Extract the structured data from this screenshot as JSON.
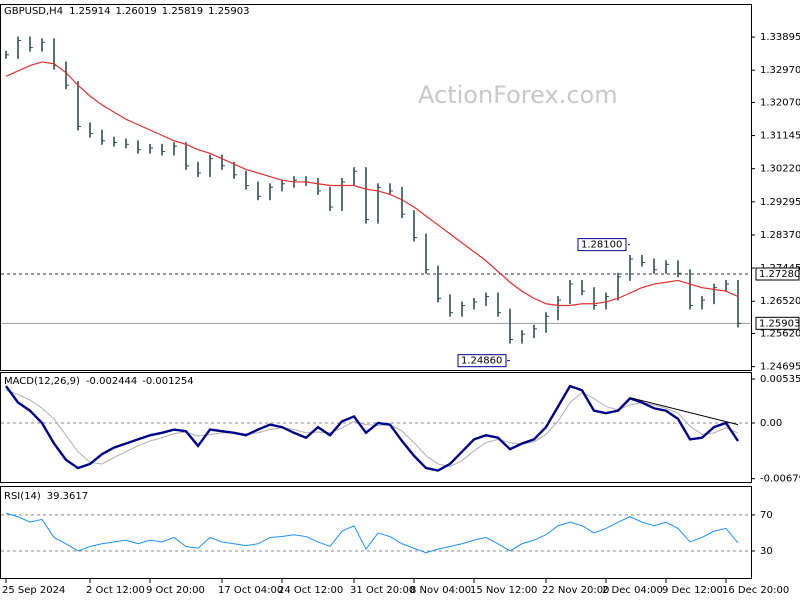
{
  "chart_data": [
    {
      "type": "price",
      "title": "GBPUSD,H4",
      "quote": [
        1.25914,
        1.26019,
        1.25819,
        1.25903
      ],
      "watermark": "ActionForex.com",
      "color": "#2f4f4f",
      "values": [
        1.334,
        1.338,
        1.336,
        1.3375,
        1.331,
        1.3255,
        1.314,
        1.312,
        1.31,
        1.3095,
        1.309,
        1.3075,
        1.308,
        1.307,
        1.3085,
        1.303,
        1.301,
        1.305,
        1.303,
        1.3005,
        1.2975,
        1.2945,
        1.297,
        1.298,
        1.299,
        1.2985,
        1.296,
        1.2915,
        1.2985,
        1.3015,
        1.288,
        1.297,
        1.296,
        1.2895,
        1.283,
        1.274,
        1.266,
        1.262,
        1.264,
        1.265,
        1.2665,
        1.262,
        1.2545,
        1.256,
        1.2575,
        1.261,
        1.2655,
        1.27,
        1.268,
        1.264,
        1.2665,
        1.272,
        1.277,
        1.276,
        1.274,
        1.2755,
        1.273,
        1.264,
        1.2655,
        1.269,
        1.27,
        1.259
      ],
      "ma": {
        "color": "#e03030",
        "values": [
          1.328,
          1.3295,
          1.331,
          1.332,
          1.3315,
          1.329,
          1.3255,
          1.3225,
          1.32,
          1.318,
          1.316,
          1.3145,
          1.313,
          1.3115,
          1.31,
          1.309,
          1.3075,
          1.3065,
          1.305,
          1.3035,
          1.302,
          1.301,
          1.3,
          1.299,
          1.2985,
          1.2985,
          1.298,
          1.2975,
          1.2975,
          1.2975,
          1.2965,
          1.296,
          1.295,
          1.2935,
          1.2915,
          1.289,
          1.2865,
          1.284,
          1.2815,
          1.279,
          1.2765,
          1.2735,
          1.2705,
          1.268,
          1.266,
          1.2645,
          1.264,
          1.264,
          1.2645,
          1.2645,
          1.265,
          1.266,
          1.2675,
          1.269,
          1.27,
          1.2705,
          1.271,
          1.27,
          1.269,
          1.2685,
          1.268,
          1.2665
        ]
      },
      "ylim": [
        1.246,
        1.3479
      ],
      "yticks": [
        1.33895,
        {
          "value": 1.3297,
          "label": "1.32970"
        },
        {
          "value": 1.3207,
          "label": "1.32070"
        },
        1.31145,
        {
          "value": 1.3022,
          "label": "1.30220"
        },
        1.29295,
        {
          "value": 1.2837,
          "label": "1.28370"
        },
        1.27445,
        {
          "value": 1.2652,
          "label": "1.26520"
        },
        {
          "value": 1.2562,
          "label": "1.25620"
        },
        1.24695
      ],
      "levels": [
        {
          "value": 1.2728,
          "label": "1.27280"
        },
        1.25903
      ],
      "annotations": [
        {
          "value": 1.281,
          "label": "1.28100"
        },
        {
          "value": 1.2486,
          "label": "1.24860"
        }
      ]
    },
    {
      "type": "macd",
      "title": "MACD(12,26,9)",
      "readout": [
        -0.002444,
        -0.001254
      ],
      "series": [
        {
          "color": "#00008b",
          "values": [
            0.0045,
            0.0025,
            0.0015,
            0.0,
            -0.0025,
            -0.0045,
            -0.0055,
            -0.005,
            -0.0038,
            -0.003,
            -0.0025,
            -0.002,
            -0.0015,
            -0.0012,
            -0.0008,
            -0.001,
            -0.0028,
            -0.0008,
            -0.001,
            -0.0012,
            -0.0015,
            -0.0008,
            -0.0002,
            -0.0005,
            -0.0012,
            -0.0018,
            -0.0005,
            -0.0015,
            0.0002,
            0.0008,
            -0.0012,
            0.0,
            -0.0002,
            -0.0022,
            -0.004,
            -0.0055,
            -0.0058,
            -0.005,
            -0.0035,
            -0.002,
            -0.0015,
            -0.0018,
            -0.0032,
            -0.0025,
            -0.002,
            -0.0005,
            0.002,
            0.0045,
            0.004,
            0.0015,
            0.0012,
            0.0015,
            0.003,
            0.0025,
            0.0018,
            0.0015,
            0.0005,
            -0.002,
            -0.0018,
            -0.0005,
            0.0,
            -0.0022
          ]
        },
        {
          "color": "#b0b0b0",
          "values": [
            0.004,
            0.0035,
            0.0028,
            0.0018,
            0.0005,
            -0.0015,
            -0.0035,
            -0.0048,
            -0.005,
            -0.0042,
            -0.0035,
            -0.0028,
            -0.0022,
            -0.0018,
            -0.0013,
            -0.0011,
            -0.0016,
            -0.0014,
            -0.0012,
            -0.0012,
            -0.0013,
            -0.0012,
            -0.0008,
            -0.0006,
            -0.0008,
            -0.0012,
            -0.0011,
            -0.0012,
            -0.0006,
            0.0002,
            -0.0002,
            -0.0003,
            -0.0002,
            -0.001,
            -0.0024,
            -0.004,
            -0.005,
            -0.0053,
            -0.0046,
            -0.0034,
            -0.0024,
            -0.002,
            -0.0024,
            -0.0026,
            -0.0023,
            -0.0014,
            0.0002,
            0.0025,
            0.0037,
            0.003,
            0.002,
            0.0016,
            0.0022,
            0.0025,
            0.0022,
            0.0018,
            0.0012,
            -0.0004,
            -0.0014,
            -0.0012,
            -0.0006,
            -0.0012
          ]
        }
      ],
      "trendline": [
        0.0031,
        -0.0002
      ],
      "ylim": [
        -0.0072,
        0.0061
      ],
      "yticks": [
        0.005359,
        {
          "value": 0,
          "label": "0.00"
        },
        -0.006798
      ]
    },
    {
      "type": "rsi",
      "title": "RSI(14)",
      "readout": [
        39.3617
      ],
      "color": "#1e90ff",
      "values": [
        72,
        68,
        62,
        65,
        45,
        38,
        30,
        35,
        38,
        40,
        42,
        38,
        42,
        40,
        45,
        35,
        33,
        45,
        40,
        38,
        36,
        38,
        45,
        46,
        48,
        46,
        40,
        35,
        52,
        58,
        32,
        50,
        46,
        38,
        33,
        28,
        32,
        35,
        38,
        42,
        45,
        38,
        30,
        38,
        42,
        48,
        58,
        62,
        58,
        50,
        55,
        62,
        68,
        62,
        58,
        62,
        55,
        40,
        45,
        52,
        55,
        39
      ],
      "ylim": [
        0,
        101
      ],
      "yticks": [
        70,
        30
      ],
      "categories": [
        "25 Sep 2024",
        null,
        null,
        null,
        null,
        null,
        null,
        "2 Oct 12:00",
        null,
        null,
        null,
        null,
        "9 Oct 20:00",
        null,
        null,
        null,
        null,
        null,
        "17 Oct 04:00",
        null,
        null,
        null,
        null,
        "24 Oct 12:00",
        null,
        null,
        null,
        null,
        null,
        "31 Oct 20:00",
        null,
        null,
        null,
        null,
        "8 Nov 04:00",
        null,
        null,
        null,
        null,
        "15 Nov 12:00",
        null,
        null,
        null,
        null,
        null,
        "22 Nov 20:00",
        null,
        null,
        null,
        null,
        "2 Dec 04:00",
        null,
        null,
        null,
        null,
        "9 Dec 12:00",
        null,
        null,
        null,
        null,
        "16 Dec 20:00",
        null
      ]
    }
  ]
}
